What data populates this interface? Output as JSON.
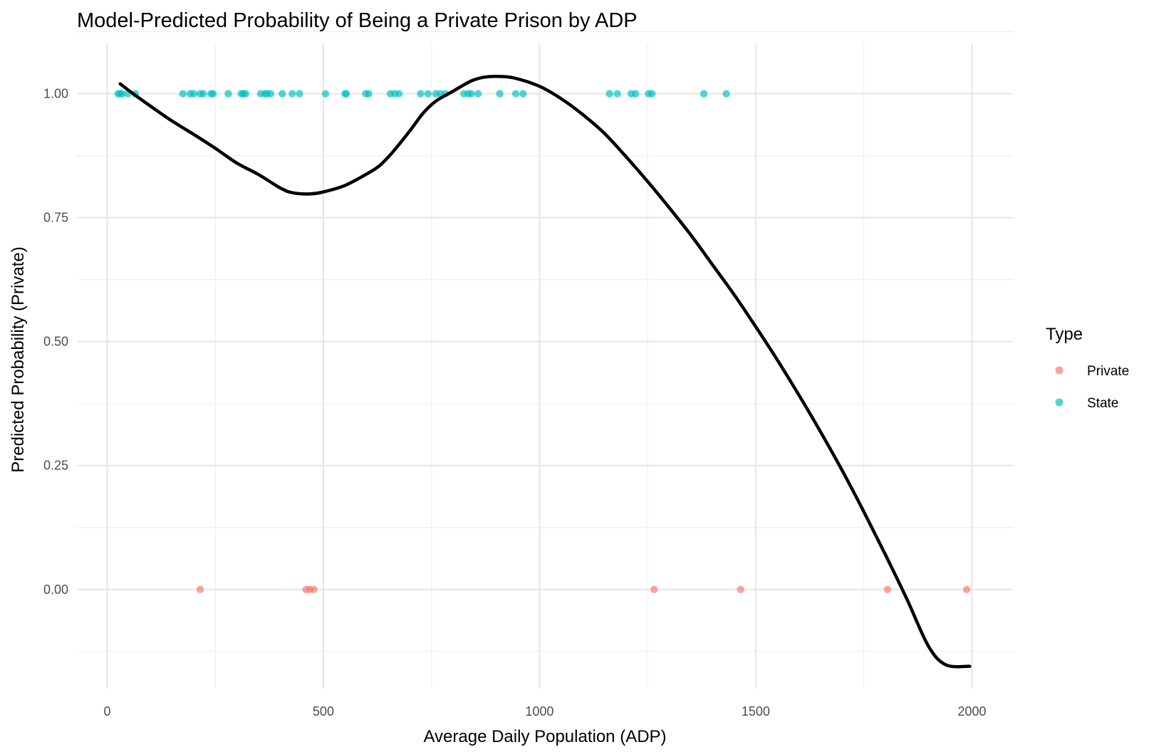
{
  "chart_data": {
    "type": "scatter",
    "title": "Model-Predicted Probability of Being a Private Prison by ADP",
    "xlabel": "Average Daily Population (ADP)",
    "ylabel": "Predicted Probability (Private)",
    "xlim": [
      -70,
      2095
    ],
    "ylim": [
      -0.2,
      1.1
    ],
    "x_ticks": [
      0,
      500,
      1000,
      1500,
      2000
    ],
    "x_tick_labels": [
      "0",
      "500",
      "1000",
      "1500",
      "2000"
    ],
    "y_ticks": [
      0,
      0.25,
      0.5,
      0.75,
      1
    ],
    "y_tick_labels": [
      "0.00",
      "0.25",
      "0.50",
      "0.75",
      "1.00"
    ],
    "grid": true,
    "legend": {
      "title": "Type",
      "position": "right",
      "entries": [
        {
          "label": "Private",
          "color": "#F8766D"
        },
        {
          "label": "State",
          "color": "#00BFC4"
        }
      ]
    },
    "series": [
      {
        "name": "Private",
        "color": "#F8766D",
        "points": [
          {
            "x": 215,
            "y": 0
          },
          {
            "x": 460,
            "y": 0
          },
          {
            "x": 468,
            "y": 0
          },
          {
            "x": 478,
            "y": 0
          },
          {
            "x": 1265,
            "y": 0
          },
          {
            "x": 1465,
            "y": 0
          },
          {
            "x": 1805,
            "y": 0
          },
          {
            "x": 1988,
            "y": 0
          }
        ]
      },
      {
        "name": "State",
        "color": "#00BFC4",
        "points": [
          {
            "x": 25,
            "y": 1
          },
          {
            "x": 30,
            "y": 1
          },
          {
            "x": 35,
            "y": 1
          },
          {
            "x": 48,
            "y": 1
          },
          {
            "x": 65,
            "y": 1
          },
          {
            "x": 175,
            "y": 1
          },
          {
            "x": 192,
            "y": 1
          },
          {
            "x": 200,
            "y": 1
          },
          {
            "x": 215,
            "y": 1
          },
          {
            "x": 222,
            "y": 1
          },
          {
            "x": 240,
            "y": 1
          },
          {
            "x": 245,
            "y": 1
          },
          {
            "x": 280,
            "y": 1
          },
          {
            "x": 310,
            "y": 1
          },
          {
            "x": 315,
            "y": 1
          },
          {
            "x": 320,
            "y": 1
          },
          {
            "x": 355,
            "y": 1
          },
          {
            "x": 365,
            "y": 1
          },
          {
            "x": 370,
            "y": 1
          },
          {
            "x": 378,
            "y": 1
          },
          {
            "x": 405,
            "y": 1
          },
          {
            "x": 428,
            "y": 1
          },
          {
            "x": 445,
            "y": 1
          },
          {
            "x": 505,
            "y": 1
          },
          {
            "x": 550,
            "y": 1
          },
          {
            "x": 553,
            "y": 1
          },
          {
            "x": 598,
            "y": 1
          },
          {
            "x": 605,
            "y": 1
          },
          {
            "x": 655,
            "y": 1
          },
          {
            "x": 665,
            "y": 1
          },
          {
            "x": 675,
            "y": 1
          },
          {
            "x": 725,
            "y": 1
          },
          {
            "x": 742,
            "y": 1
          },
          {
            "x": 760,
            "y": 1
          },
          {
            "x": 770,
            "y": 1
          },
          {
            "x": 782,
            "y": 1
          },
          {
            "x": 825,
            "y": 1
          },
          {
            "x": 835,
            "y": 1
          },
          {
            "x": 842,
            "y": 1
          },
          {
            "x": 858,
            "y": 1
          },
          {
            "x": 908,
            "y": 1
          },
          {
            "x": 945,
            "y": 1
          },
          {
            "x": 962,
            "y": 1
          },
          {
            "x": 1162,
            "y": 1
          },
          {
            "x": 1180,
            "y": 1
          },
          {
            "x": 1212,
            "y": 1
          },
          {
            "x": 1222,
            "y": 1
          },
          {
            "x": 1252,
            "y": 1
          },
          {
            "x": 1260,
            "y": 1
          },
          {
            "x": 1380,
            "y": 1
          },
          {
            "x": 1432,
            "y": 1
          }
        ]
      }
    ],
    "fit_line": {
      "color": "#000000",
      "points": [
        {
          "x": 30,
          "y": 1.02
        },
        {
          "x": 60,
          "y": 1.0
        },
        {
          "x": 100,
          "y": 0.975
        },
        {
          "x": 150,
          "y": 0.945
        },
        {
          "x": 200,
          "y": 0.918
        },
        {
          "x": 250,
          "y": 0.89
        },
        {
          "x": 300,
          "y": 0.86
        },
        {
          "x": 350,
          "y": 0.837
        },
        {
          "x": 400,
          "y": 0.81
        },
        {
          "x": 430,
          "y": 0.8
        },
        {
          "x": 470,
          "y": 0.798
        },
        {
          "x": 500,
          "y": 0.802
        },
        {
          "x": 550,
          "y": 0.815
        },
        {
          "x": 600,
          "y": 0.838
        },
        {
          "x": 630,
          "y": 0.855
        },
        {
          "x": 660,
          "y": 0.882
        },
        {
          "x": 700,
          "y": 0.925
        },
        {
          "x": 730,
          "y": 0.96
        },
        {
          "x": 760,
          "y": 0.985
        },
        {
          "x": 800,
          "y": 1.005
        },
        {
          "x": 840,
          "y": 1.025
        },
        {
          "x": 870,
          "y": 1.033
        },
        {
          "x": 900,
          "y": 1.035
        },
        {
          "x": 940,
          "y": 1.032
        },
        {
          "x": 1000,
          "y": 1.015
        },
        {
          "x": 1050,
          "y": 0.99
        },
        {
          "x": 1100,
          "y": 0.958
        },
        {
          "x": 1150,
          "y": 0.92
        },
        {
          "x": 1200,
          "y": 0.873
        },
        {
          "x": 1250,
          "y": 0.823
        },
        {
          "x": 1300,
          "y": 0.77
        },
        {
          "x": 1350,
          "y": 0.715
        },
        {
          "x": 1400,
          "y": 0.655
        },
        {
          "x": 1450,
          "y": 0.595
        },
        {
          "x": 1500,
          "y": 0.53
        },
        {
          "x": 1550,
          "y": 0.463
        },
        {
          "x": 1600,
          "y": 0.392
        },
        {
          "x": 1650,
          "y": 0.318
        },
        {
          "x": 1700,
          "y": 0.24
        },
        {
          "x": 1750,
          "y": 0.157
        },
        {
          "x": 1800,
          "y": 0.07
        },
        {
          "x": 1850,
          "y": -0.02
        },
        {
          "x": 1900,
          "y": -0.115
        },
        {
          "x": 1940,
          "y": -0.152
        },
        {
          "x": 1995,
          "y": -0.155
        }
      ]
    }
  }
}
